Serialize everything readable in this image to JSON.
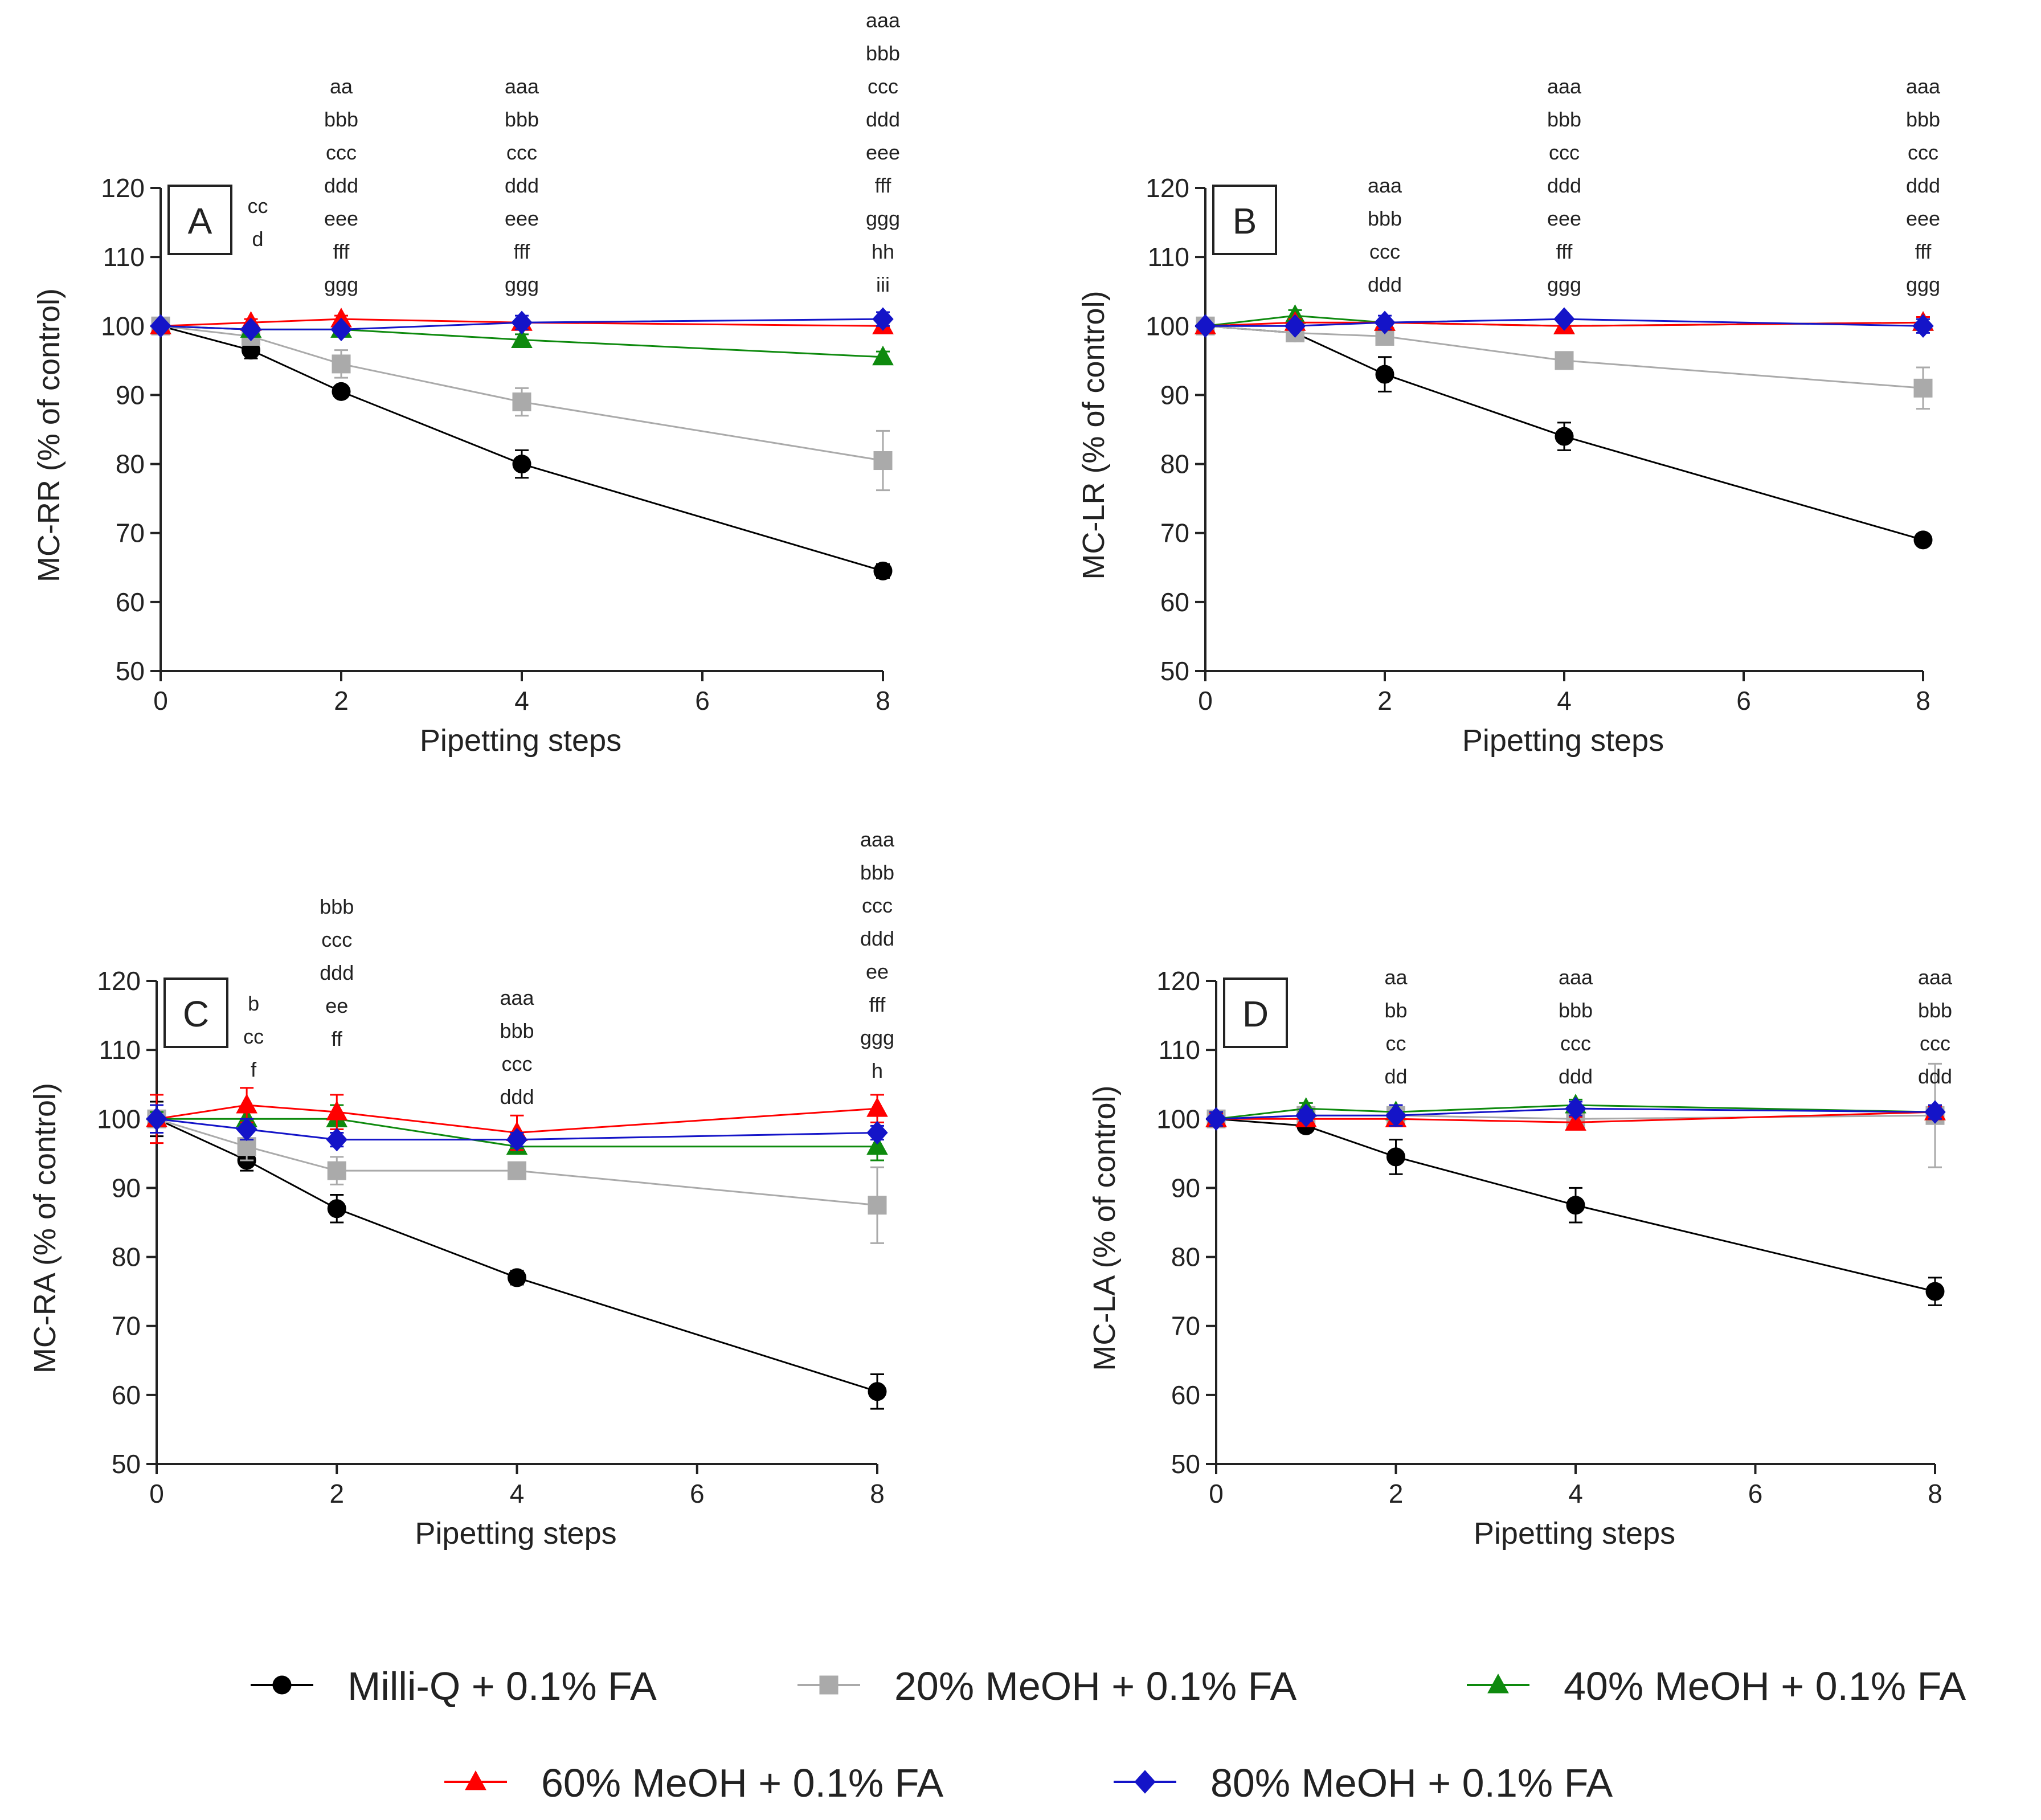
{
  "colors": {
    "Milli-Q + 0.1% FA": "#000000",
    "20% MeOH + 0.1% FA": "#aaaaaa",
    "40% MeOH + 0.1% FA": "#0e8a0e",
    "60% MeOH + 0.1% FA": "#ff0000",
    "80% MeOH + 0.1% FA": "#1414c8"
  },
  "markers": {
    "Milli-Q + 0.1% FA": "circle",
    "20% MeOH + 0.1% FA": "square",
    "40% MeOH + 0.1% FA": "triangle",
    "60% MeOH + 0.1% FA": "triangle",
    "80% MeOH + 0.1% FA": "diamond"
  },
  "legend": {
    "items": [
      "Milli-Q + 0.1% FA",
      "20% MeOH + 0.1% FA",
      "40% MeOH + 0.1% FA",
      "60% MeOH + 0.1% FA",
      "80% MeOH + 0.1% FA"
    ]
  },
  "chart_data": [
    {
      "type": "line",
      "panel": "A",
      "xlabel": "Pipetting steps",
      "ylabel": "MC-RR (% of control)",
      "xlim": [
        0,
        8
      ],
      "ylim": [
        50,
        120
      ],
      "xticks": [
        0,
        2,
        4,
        6,
        8
      ],
      "yticks": [
        50,
        60,
        70,
        80,
        90,
        100,
        110,
        120
      ],
      "x": [
        0,
        1,
        2,
        4,
        8
      ],
      "series": [
        {
          "name": "Milli-Q + 0.1% FA",
          "values": [
            100,
            96.5,
            90.5,
            80,
            64.5
          ],
          "errors": [
            0.8,
            1.2,
            0.8,
            2,
            1
          ]
        },
        {
          "name": "20% MeOH + 0.1% FA",
          "values": [
            100,
            98.5,
            94.5,
            89,
            80.5
          ],
          "errors": [
            0.8,
            1,
            2,
            2,
            4.3
          ]
        },
        {
          "name": "40% MeOH + 0.1% FA",
          "values": [
            100,
            99.5,
            99.5,
            98,
            95.5
          ],
          "errors": [
            0.5,
            0.5,
            0.5,
            0.8,
            0.8
          ]
        },
        {
          "name": "60% MeOH + 0.1% FA",
          "values": [
            100,
            100.5,
            101,
            100.5,
            100
          ],
          "errors": [
            0.5,
            0.5,
            0.5,
            0.5,
            0.5
          ]
        },
        {
          "name": "80% MeOH + 0.1% FA",
          "values": [
            100,
            99.5,
            99.5,
            100.5,
            101
          ],
          "errors": [
            0.5,
            0.5,
            0.5,
            1,
            1
          ]
        }
      ],
      "annotations": [
        {
          "x": 1,
          "lines": [
            "cc",
            "d"
          ]
        },
        {
          "x": 2,
          "lines": [
            "aa",
            "bbb",
            "ccc",
            "ddd",
            "eee",
            "fff",
            "ggg"
          ]
        },
        {
          "x": 4,
          "lines": [
            "aaa",
            "bbb",
            "ccc",
            "ddd",
            "eee",
            "fff",
            "ggg"
          ]
        },
        {
          "x": 8,
          "lines": [
            "aaa",
            "bbb",
            "ccc",
            "ddd",
            "eee",
            "fff",
            "ggg",
            "hh",
            "iii"
          ]
        }
      ]
    },
    {
      "type": "line",
      "panel": "B",
      "xlabel": "Pipetting steps",
      "ylabel": "MC-LR (% of control)",
      "xlim": [
        0,
        8
      ],
      "ylim": [
        50,
        120
      ],
      "xticks": [
        0,
        2,
        4,
        6,
        8
      ],
      "yticks": [
        50,
        60,
        70,
        80,
        90,
        100,
        110,
        120
      ],
      "x": [
        0,
        1,
        2,
        4,
        8
      ],
      "series": [
        {
          "name": "Milli-Q + 0.1% FA",
          "values": [
            100,
            99,
            93,
            84,
            69
          ],
          "errors": [
            0.8,
            0.8,
            2.5,
            2,
            0.5
          ]
        },
        {
          "name": "20% MeOH + 0.1% FA",
          "values": [
            100,
            99,
            98.5,
            95,
            91
          ],
          "errors": [
            0.8,
            0.8,
            1,
            0.8,
            3
          ]
        },
        {
          "name": "40% MeOH + 0.1% FA",
          "values": [
            100,
            101.5,
            100.5,
            100,
            100.5
          ],
          "errors": [
            0.5,
            0.8,
            0.5,
            0.5,
            0.5
          ]
        },
        {
          "name": "60% MeOH + 0.1% FA",
          "values": [
            100,
            100.5,
            100.5,
            100,
            100.5
          ],
          "errors": [
            0.5,
            0.5,
            0.5,
            0.5,
            0.8
          ]
        },
        {
          "name": "80% MeOH + 0.1% FA",
          "values": [
            100,
            100,
            100.5,
            101,
            100
          ],
          "errors": [
            0.5,
            0.5,
            1,
            0.5,
            1
          ]
        }
      ],
      "annotations": [
        {
          "x": 2,
          "lines": [
            "aaa",
            "bbb",
            "ccc",
            "ddd"
          ]
        },
        {
          "x": 4,
          "lines": [
            "aaa",
            "bbb",
            "ccc",
            "ddd",
            "eee",
            "fff",
            "ggg"
          ]
        },
        {
          "x": 8,
          "lines": [
            "aaa",
            "bbb",
            "ccc",
            "ddd",
            "eee",
            "fff",
            "ggg"
          ]
        }
      ]
    },
    {
      "type": "line",
      "panel": "C",
      "xlabel": "Pipetting steps",
      "ylabel": "MC-RA (% of control)",
      "xlim": [
        0,
        8
      ],
      "ylim": [
        50,
        120
      ],
      "xticks": [
        0,
        2,
        4,
        6,
        8
      ],
      "yticks": [
        50,
        60,
        70,
        80,
        90,
        100,
        110,
        120
      ],
      "x": [
        0,
        1,
        2,
        4,
        8
      ],
      "series": [
        {
          "name": "Milli-Q + 0.1% FA",
          "values": [
            100,
            94,
            87,
            77,
            60.5
          ],
          "errors": [
            2.5,
            1.5,
            2,
            1,
            2.5
          ]
        },
        {
          "name": "20% MeOH + 0.1% FA",
          "values": [
            100,
            96,
            92.5,
            92.5,
            87.5
          ],
          "errors": [
            2,
            2,
            2,
            1,
            5.5
          ]
        },
        {
          "name": "40% MeOH + 0.1% FA",
          "values": [
            100,
            100,
            100,
            96,
            96
          ],
          "errors": [
            1,
            1,
            2,
            1,
            2
          ]
        },
        {
          "name": "60% MeOH + 0.1% FA",
          "values": [
            100,
            102,
            101,
            98,
            101.5
          ],
          "errors": [
            3.5,
            2.5,
            2.5,
            2.5,
            2
          ]
        },
        {
          "name": "80% MeOH + 0.1% FA",
          "values": [
            100,
            98.5,
            97,
            97,
            98
          ],
          "errors": [
            2,
            1.5,
            1,
            1,
            1
          ]
        }
      ],
      "annotations": [
        {
          "x": 1,
          "lines": [
            "b",
            "cc",
            "f"
          ]
        },
        {
          "x": 2,
          "lines": [
            "bbb",
            "ccc",
            "ddd",
            "ee",
            "ff"
          ]
        },
        {
          "x": 4,
          "lines": [
            "aaa",
            "bbb",
            "ccc",
            "ddd"
          ]
        },
        {
          "x": 8,
          "lines": [
            "aaa",
            "bbb",
            "ccc",
            "ddd",
            "ee",
            "fff",
            "ggg",
            "h"
          ]
        }
      ]
    },
    {
      "type": "line",
      "panel": "D",
      "xlabel": "Pipetting steps",
      "ylabel": "MC-LA (% of control)",
      "xlim": [
        0,
        8
      ],
      "ylim": [
        50,
        120
      ],
      "xticks": [
        0,
        2,
        4,
        6,
        8
      ],
      "yticks": [
        50,
        60,
        70,
        80,
        90,
        100,
        110,
        120
      ],
      "x": [
        0,
        1,
        2,
        4,
        8
      ],
      "series": [
        {
          "name": "Milli-Q + 0.1% FA",
          "values": [
            100,
            99,
            94.5,
            87.5,
            75
          ],
          "errors": [
            0.8,
            0.8,
            2.5,
            2.5,
            2
          ]
        },
        {
          "name": "20% MeOH + 0.1% FA",
          "values": [
            100,
            100.5,
            100.5,
            100,
            100.5
          ],
          "errors": [
            1,
            0.8,
            1,
            1.5,
            7.5
          ]
        },
        {
          "name": "40% MeOH + 0.1% FA",
          "values": [
            100,
            101.5,
            101,
            102,
            101
          ],
          "errors": [
            1,
            0.8,
            1,
            0.8,
            1
          ]
        },
        {
          "name": "60% MeOH + 0.1% FA",
          "values": [
            100,
            100,
            100,
            99.5,
            101
          ],
          "errors": [
            0.8,
            0.8,
            0.8,
            0.8,
            0.8
          ]
        },
        {
          "name": "80% MeOH + 0.1% FA",
          "values": [
            100,
            100.5,
            100.5,
            101.5,
            101
          ],
          "errors": [
            1,
            0.8,
            1.5,
            1,
            1
          ]
        }
      ],
      "annotations": [
        {
          "x": 2,
          "lines": [
            "aa",
            "bb",
            "cc",
            "dd"
          ]
        },
        {
          "x": 4,
          "lines": [
            "aaa",
            "bbb",
            "ccc",
            "ddd"
          ]
        },
        {
          "x": 8,
          "lines": [
            "aaa",
            "bbb",
            "ccc",
            "ddd"
          ]
        }
      ]
    }
  ]
}
